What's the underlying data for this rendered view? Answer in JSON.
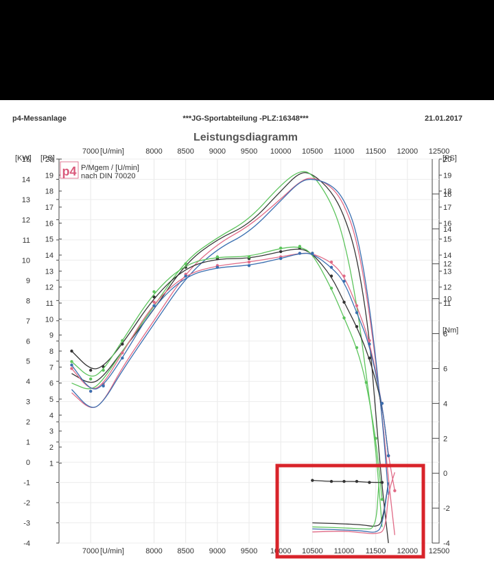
{
  "header": {
    "left": "p4-Messanlage",
    "center": "***JG-Sportabteilung -PLZ:16348***",
    "right": "21.01.2017"
  },
  "logo": {
    "text": "p4"
  },
  "chart_data": {
    "type": "line",
    "title": "Leistungsdiagramm",
    "subtitle_line1": "P/Mgem / [U/min]",
    "subtitle_line2": "nach DIN 70020",
    "x_axis": {
      "label": "[U/min]",
      "range": [
        6500,
        12500
      ],
      "ticks": [
        7000,
        8000,
        8500,
        9000,
        9500,
        10000,
        10500,
        11000,
        11500,
        12000,
        12500
      ]
    },
    "kw_axis": {
      "label": "[KW]",
      "range": [
        -4,
        15
      ],
      "ticks": [
        15,
        14,
        13,
        12,
        11,
        10,
        9,
        8,
        7,
        6,
        5,
        4,
        3,
        2,
        1,
        0,
        -1,
        -2,
        -3,
        -4
      ]
    },
    "ps_axis": {
      "label": "[PS]",
      "range": [
        -4,
        20
      ],
      "left_ticks": [
        20,
        19,
        18,
        17,
        16,
        15,
        14,
        13,
        12,
        11,
        10,
        9,
        8,
        7,
        6,
        5,
        4,
        3,
        2,
        1
      ],
      "right_ticks": [
        20,
        19,
        18,
        17,
        16,
        15,
        14,
        13,
        12,
        11
      ]
    },
    "nm_axis": {
      "label": "[Nm]",
      "range": [
        -4,
        18
      ],
      "ticks": [
        16,
        14,
        12,
        10,
        8,
        6,
        4,
        2,
        0,
        -2,
        -4
      ]
    },
    "grid": true,
    "colors": {
      "black": "#333333",
      "green": "#5cc45c",
      "pink": "#e06a86",
      "blue": "#3a6fb0",
      "highlight": "#d8232a"
    },
    "series": [
      {
        "color": "black",
        "unit": "PS",
        "x": [
          6700,
          7000,
          7200,
          7500,
          8000,
          8500,
          9000,
          9500,
          10000,
          10300,
          10500,
          10800,
          11000,
          11200,
          11400,
          11500,
          11600,
          11700
        ],
        "values": [
          6.6,
          5.9,
          6.4,
          8.0,
          10.6,
          13.5,
          15.0,
          15.9,
          18.0,
          19.2,
          19.1,
          18.0,
          16.5,
          14.0,
          9.0,
          4.0,
          -0.5,
          -4.0
        ]
      },
      {
        "color": "green",
        "unit": "PS",
        "x": [
          6700,
          7000,
          7200,
          7500,
          8000,
          8500,
          9000,
          9500,
          10000,
          10300,
          10500,
          10800,
          11000,
          11200,
          11350,
          11500,
          11600
        ],
        "values": [
          6.0,
          5.5,
          6.2,
          8.0,
          10.8,
          13.7,
          15.1,
          16.2,
          18.4,
          19.3,
          19.1,
          17.3,
          15.0,
          11.0,
          6.5,
          2.0,
          -3.0
        ]
      },
      {
        "color": "pink",
        "unit": "PS",
        "x": [
          6700,
          7000,
          7200,
          7500,
          8000,
          8500,
          9000,
          9500,
          10000,
          10300,
          10500,
          10800,
          11000,
          11200,
          11400,
          11600,
          11700,
          11800
        ],
        "values": [
          5.4,
          4.3,
          4.8,
          7.0,
          9.9,
          12.9,
          14.7,
          15.8,
          17.5,
          18.6,
          18.9,
          18.3,
          17.2,
          15.0,
          10.5,
          4.0,
          0.0,
          -3.5
        ]
      },
      {
        "color": "blue",
        "unit": "PS",
        "x": [
          6700,
          7000,
          7200,
          7500,
          8000,
          8500,
          9000,
          9500,
          10000,
          10300,
          10500,
          10800,
          11000,
          11200,
          11400,
          11600,
          11700
        ],
        "values": [
          5.6,
          4.3,
          4.8,
          6.8,
          9.7,
          12.6,
          14.4,
          15.4,
          17.4,
          18.6,
          18.8,
          18.4,
          17.5,
          15.5,
          11.0,
          4.0,
          -1.0
        ]
      },
      {
        "color": "black",
        "unit": "Nm",
        "x": [
          6700,
          7000,
          7200,
          7500,
          8000,
          8500,
          9000,
          9500,
          10000,
          10300,
          10500,
          10800,
          11000,
          11200,
          11400,
          11600,
          11700
        ],
        "values": [
          7.0,
          5.9,
          6.1,
          7.4,
          10.1,
          11.8,
          12.3,
          12.3,
          12.7,
          12.9,
          12.6,
          11.3,
          9.8,
          8.4,
          6.6,
          4.0,
          1.0
        ]
      },
      {
        "color": "green",
        "unit": "Nm",
        "x": [
          6700,
          7000,
          7200,
          7500,
          8000,
          8500,
          9000,
          9500,
          10000,
          10300,
          10500,
          10800,
          11000,
          11200,
          11350,
          11500,
          11600
        ],
        "values": [
          6.4,
          5.4,
          5.9,
          7.6,
          10.4,
          12.0,
          12.4,
          12.4,
          12.9,
          13.0,
          12.6,
          10.6,
          8.9,
          7.2,
          5.2,
          2.0,
          -1.5
        ]
      },
      {
        "color": "pink",
        "unit": "Nm",
        "x": [
          6700,
          7000,
          7200,
          7500,
          8000,
          8500,
          9000,
          9500,
          10000,
          10300,
          10500,
          10800,
          11000,
          11200,
          11400,
          11600,
          11700,
          11800
        ],
        "values": [
          6.0,
          4.7,
          5.1,
          6.9,
          9.8,
          11.4,
          11.9,
          12.1,
          12.4,
          12.6,
          12.6,
          12.1,
          11.3,
          9.6,
          7.6,
          4.0,
          1.0,
          -1.0
        ]
      },
      {
        "color": "blue",
        "unit": "Nm",
        "x": [
          6700,
          7000,
          7200,
          7500,
          8000,
          8500,
          9000,
          9500,
          10000,
          10300,
          10500,
          10800,
          11000,
          11200,
          11400,
          11600,
          11700
        ],
        "values": [
          6.2,
          4.7,
          5.0,
          6.6,
          9.6,
          11.3,
          11.8,
          11.9,
          12.3,
          12.6,
          12.6,
          11.8,
          11.0,
          9.2,
          7.4,
          4.0,
          1.0
        ]
      },
      {
        "color": "black",
        "unit": "KW",
        "name_hint": "loss",
        "x": [
          10500,
          10800,
          11000,
          11200,
          11400,
          11600
        ],
        "values": [
          -0.9,
          -0.95,
          -0.95,
          -0.95,
          -1.0,
          -1.0
        ]
      },
      {
        "color": "black",
        "unit": "KW",
        "x": [
          10500,
          11000,
          11300,
          11500,
          11600,
          11700
        ],
        "values": [
          -3.0,
          -3.05,
          -3.1,
          -3.2,
          -3.0,
          -1.0
        ]
      },
      {
        "color": "green",
        "unit": "KW",
        "x": [
          10500,
          11000,
          11300,
          11500,
          11550
        ],
        "values": [
          -3.2,
          -3.25,
          -3.3,
          -3.3,
          -1.0
        ]
      },
      {
        "color": "pink",
        "unit": "KW",
        "x": [
          10500,
          11000,
          11300,
          11500,
          11650,
          11700,
          11800
        ],
        "values": [
          -3.45,
          -3.4,
          -3.5,
          -3.55,
          -3.4,
          -1.5,
          -0.5
        ]
      },
      {
        "color": "blue",
        "unit": "KW",
        "x": [
          10500,
          11000,
          11300,
          11500,
          11600,
          11700
        ],
        "values": [
          -3.3,
          -3.35,
          -3.4,
          -3.5,
          -3.2,
          -1.0
        ]
      }
    ]
  }
}
